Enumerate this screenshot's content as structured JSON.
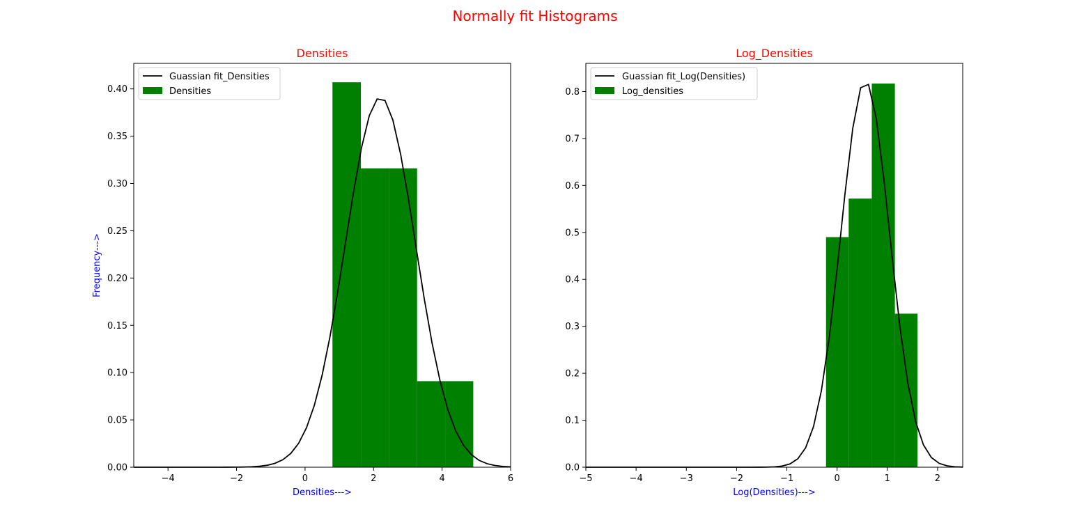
{
  "figure": {
    "suptitle": "Normally fit Histograms",
    "title_color": "#ff0000",
    "label_color": "#0000ff",
    "bar_color": "#008000",
    "line_color": "#000000"
  },
  "chart_data": [
    {
      "type": "bar",
      "title": "Densities",
      "xlabel": "Densities--->",
      "ylabel": "Frequency--->",
      "xlim": [
        -5,
        6
      ],
      "ylim": [
        0,
        0.427
      ],
      "xticks": [
        -4,
        -2,
        0,
        2,
        4,
        6
      ],
      "xtick_labels": [
        "−4",
        "−2",
        "0",
        "2",
        "4",
        "6"
      ],
      "yticks": [
        0,
        0.05,
        0.1,
        0.15,
        0.2,
        0.25,
        0.3,
        0.35,
        0.4
      ],
      "ytick_labels": [
        "0.00",
        "0.05",
        "0.10",
        "0.15",
        "0.20",
        "0.25",
        "0.30",
        "0.35",
        "0.40"
      ],
      "grid": false,
      "legend_position": "upper-left",
      "histogram": {
        "name": "Densities",
        "bins": [
          {
            "x0": 0.8,
            "x1": 1.63,
            "value": 0.407
          },
          {
            "x0": 1.63,
            "x1": 2.45,
            "value": 0.316
          },
          {
            "x0": 2.45,
            "x1": 3.27,
            "value": 0.316
          },
          {
            "x0": 3.27,
            "x1": 4.09,
            "value": 0.091
          },
          {
            "x0": 4.09,
            "x1": 4.91,
            "value": 0.091
          }
        ]
      },
      "fit": {
        "name": "Guassian fit_Densities",
        "mean": 2.2,
        "std": 1.02,
        "x_min": -5,
        "x_max": 6,
        "samples": 49
      }
    },
    {
      "type": "bar",
      "title": "Log_Densities",
      "xlabel": "Log(Densities)--->",
      "ylabel": "",
      "xlim": [
        -5,
        2.5
      ],
      "ylim": [
        0,
        0.86
      ],
      "xticks": [
        -5,
        -4,
        -3,
        -2,
        -1,
        0,
        1,
        2
      ],
      "xtick_labels": [
        "−5",
        "−4",
        "−3",
        "−2",
        "−1",
        "0",
        "1",
        "2"
      ],
      "yticks": [
        0,
        0.1,
        0.2,
        0.3,
        0.4,
        0.5,
        0.6,
        0.7,
        0.8
      ],
      "ytick_labels": [
        "0.0",
        "0.1",
        "0.2",
        "0.3",
        "0.4",
        "0.5",
        "0.6",
        "0.7",
        "0.8"
      ],
      "grid": false,
      "legend_position": "upper-left",
      "histogram": {
        "name": "Log_densities",
        "bins": [
          {
            "x0": -0.22,
            "x1": 0.23,
            "value": 0.49
          },
          {
            "x0": 0.23,
            "x1": 0.69,
            "value": 0.572
          },
          {
            "x0": 0.69,
            "x1": 1.15,
            "value": 0.817
          },
          {
            "x0": 1.15,
            "x1": 1.6,
            "value": 0.327
          }
        ]
      },
      "fit": {
        "name": "Guassian fit_Log(Densities)",
        "mean": 0.56,
        "std": 0.485,
        "x_min": -5,
        "x_max": 2.5,
        "samples": 49
      }
    }
  ]
}
